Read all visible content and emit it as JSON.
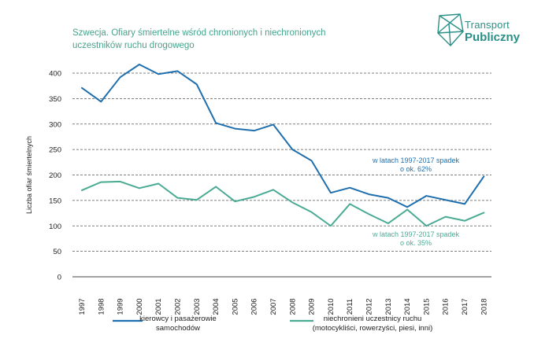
{
  "title": "Szwecja. Ofiary śmiertelne wśród chronionych i niechronionych uczestników ruchu drogowego",
  "logo": {
    "line1": "Transport",
    "line2": "Publiczny"
  },
  "colors": {
    "series1": "#1f6fae",
    "series2": "#4aab94",
    "grid": "#555555",
    "title": "#47a38c"
  },
  "chart_data": {
    "type": "line",
    "title": "Szwecja. Ofiary śmiertelne wśród chronionych i niechronionych uczestników ruchu drogowego",
    "xlabel": "",
    "ylabel": "Liczba ofiar śmiertelnych",
    "ylim": [
      0,
      400
    ],
    "yticks": [
      0,
      50,
      100,
      150,
      200,
      250,
      300,
      350,
      400
    ],
    "grid": "horizontal-dashed",
    "legend": "bottom",
    "x": [
      "1997",
      "1998",
      "1999",
      "2000",
      "2001",
      "2002",
      "2003",
      "2004",
      "2005",
      "2006",
      "2007",
      "2008",
      "2009",
      "2010",
      "2011",
      "2012",
      "2013",
      "2014",
      "2015",
      "2016",
      "2017",
      "2018"
    ],
    "series": [
      {
        "name": "kierowcy i pasażerowie samochodów",
        "legend_lines": [
          "kierowcy i pasażerowie",
          "samochodów"
        ],
        "color": "#1f6fae",
        "values": [
          371,
          344,
          392,
          417,
          398,
          404,
          378,
          302,
          291,
          287,
          299,
          250,
          228,
          165,
          175,
          162,
          155,
          137,
          159,
          151,
          143,
          197
        ]
      },
      {
        "name": "niechronieni uczestnicy ruchu (motocykliści, rowerzyści, piesi, inni)",
        "legend_lines": [
          "niechronieni uczestnicy ruchu",
          "(motocykliści, rowerzyści, piesi, inni)"
        ],
        "color": "#4aab94",
        "values": [
          170,
          186,
          187,
          174,
          183,
          155,
          151,
          177,
          148,
          157,
          171,
          146,
          127,
          100,
          143,
          123,
          105,
          132,
          100,
          118,
          110,
          126
        ]
      }
    ],
    "annotations": [
      {
        "lines": [
          "w latach 1997-2017 spadek",
          "o ok. 62%"
        ],
        "color": "#1f6fae"
      },
      {
        "lines": [
          "w latach 1997-2017 spadek",
          "o ok. 35%"
        ],
        "color": "#4aab94"
      }
    ]
  }
}
